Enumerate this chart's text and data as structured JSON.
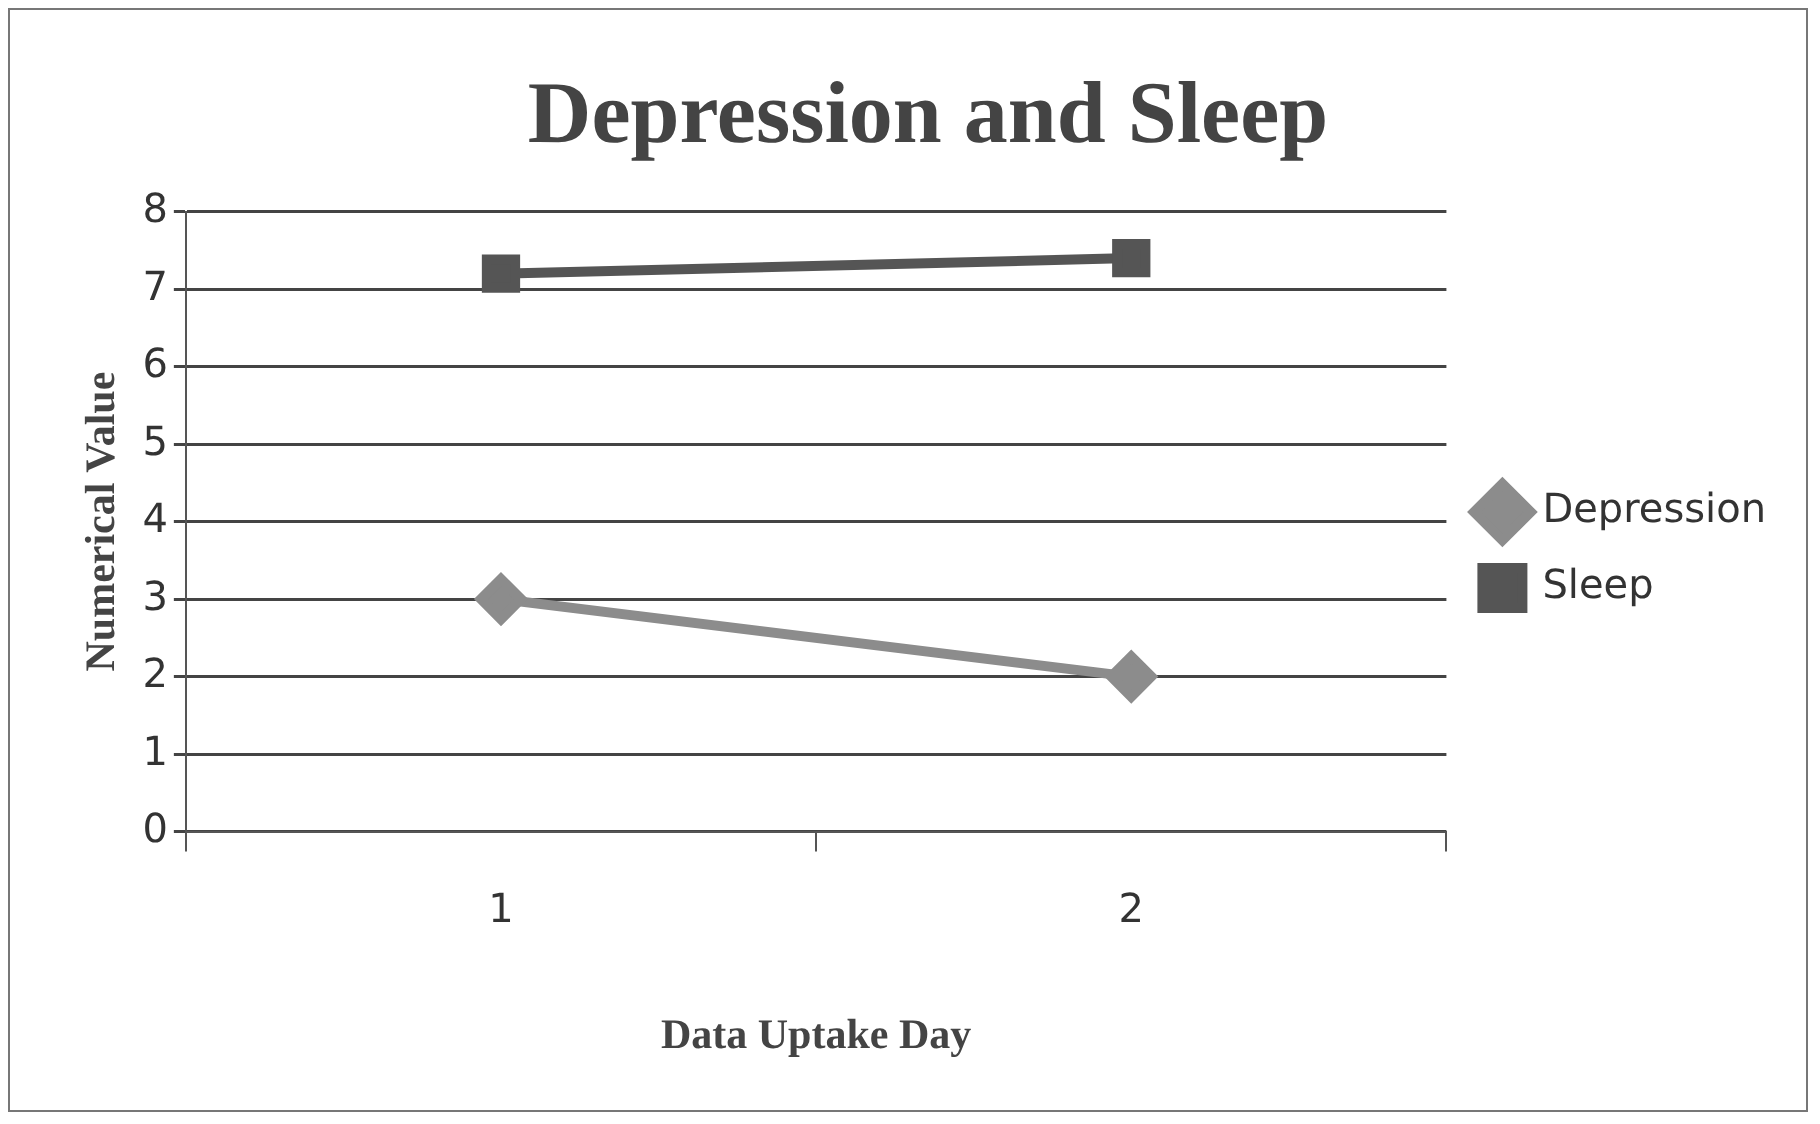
{
  "chart_data": {
    "type": "line",
    "title": "Depression and Sleep",
    "xlabel": "Data Uptake Day",
    "ylabel": "Numerical Value",
    "categories": [
      "1",
      "2"
    ],
    "series": [
      {
        "name": "Depression",
        "color": "#8c8c8c",
        "marker": "diamond",
        "values": [
          3,
          2
        ]
      },
      {
        "name": "Sleep",
        "color": "#555555",
        "marker": "square",
        "values": [
          7.2,
          7.4
        ]
      }
    ],
    "ylim": [
      0,
      8
    ],
    "yticks": [
      0,
      1,
      2,
      3,
      4,
      5,
      6,
      7,
      8
    ],
    "grid": "y",
    "legend": "right"
  }
}
